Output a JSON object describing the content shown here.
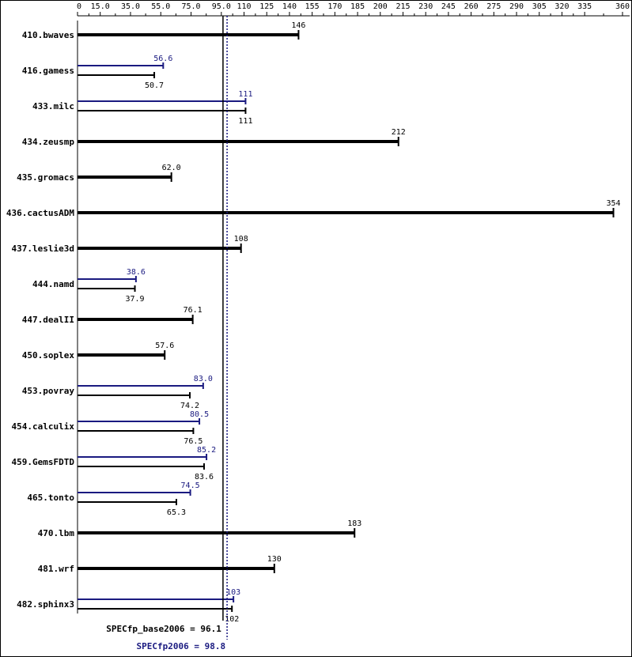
{
  "chart_data": {
    "type": "bar",
    "orientation": "horizontal",
    "xlim": [
      0,
      360
    ],
    "tick_labels": [
      "0",
      "15.0",
      "35.0",
      "55.0",
      "75.0",
      "95.0",
      "110",
      "125",
      "140",
      "155",
      "170",
      "185",
      "200",
      "215",
      "230",
      "245",
      "260",
      "275",
      "290",
      "305",
      "320",
      "335",
      "360"
    ],
    "tick_values": [
      0,
      15,
      35,
      55,
      75,
      95,
      110,
      125,
      140,
      155,
      170,
      185,
      200,
      215,
      230,
      245,
      260,
      275,
      290,
      305,
      320,
      335,
      360
    ],
    "series": [
      {
        "name": "",
        "color": "#1a1a80"
      },
      {
        "name": "",
        "color": "#000000"
      }
    ],
    "benchmarks": [
      {
        "name": "410.bwaves",
        "peak": null,
        "peak_label": "",
        "base": 146,
        "base_label": "146"
      },
      {
        "name": "416.gamess",
        "peak": 56.6,
        "peak_label": "56.6",
        "base": 50.7,
        "base_label": "50.7"
      },
      {
        "name": "433.milc",
        "peak": 111,
        "peak_label": "111",
        "base": 111,
        "base_label": "111"
      },
      {
        "name": "434.zeusmp",
        "peak": null,
        "peak_label": "",
        "base": 212,
        "base_label": "212"
      },
      {
        "name": "435.gromacs",
        "peak": null,
        "peak_label": "",
        "base": 62.0,
        "base_label": "62.0"
      },
      {
        "name": "436.cactusADM",
        "peak": null,
        "peak_label": "",
        "base": 354,
        "base_label": "354"
      },
      {
        "name": "437.leslie3d",
        "peak": null,
        "peak_label": "",
        "base": 108,
        "base_label": "108"
      },
      {
        "name": "444.namd",
        "peak": 38.6,
        "peak_label": "38.6",
        "base": 37.9,
        "base_label": "37.9"
      },
      {
        "name": "447.dealII",
        "peak": null,
        "peak_label": "",
        "base": 76.1,
        "base_label": "76.1"
      },
      {
        "name": "450.soplex",
        "peak": null,
        "peak_label": "",
        "base": 57.6,
        "base_label": "57.6"
      },
      {
        "name": "453.povray",
        "peak": 83.0,
        "peak_label": "83.0",
        "base": 74.2,
        "base_label": "74.2"
      },
      {
        "name": "454.calculix",
        "peak": 80.5,
        "peak_label": "80.5",
        "base": 76.5,
        "base_label": "76.5"
      },
      {
        "name": "459.GemsFDTD",
        "peak": 85.2,
        "peak_label": "85.2",
        "base": 83.6,
        "base_label": "83.6"
      },
      {
        "name": "465.tonto",
        "peak": 74.5,
        "peak_label": "74.5",
        "base": 65.3,
        "base_label": "65.3"
      },
      {
        "name": "470.lbm",
        "peak": null,
        "peak_label": "",
        "base": 183,
        "base_label": "183"
      },
      {
        "name": "481.wrf",
        "peak": null,
        "peak_label": "",
        "base": 130,
        "base_label": "130"
      },
      {
        "name": "482.sphinx3",
        "peak": 103,
        "peak_label": "103",
        "base": 102,
        "base_label": "102"
      }
    ],
    "reference_lines": [
      {
        "label": "SPECfp_base2006 = 96.1",
        "value": 96.1,
        "style": "solid",
        "color": "#000000"
      },
      {
        "label": "SPECfp2006 = 98.8",
        "value": 98.8,
        "style": "dotted",
        "color": "#1a1a80"
      }
    ]
  }
}
